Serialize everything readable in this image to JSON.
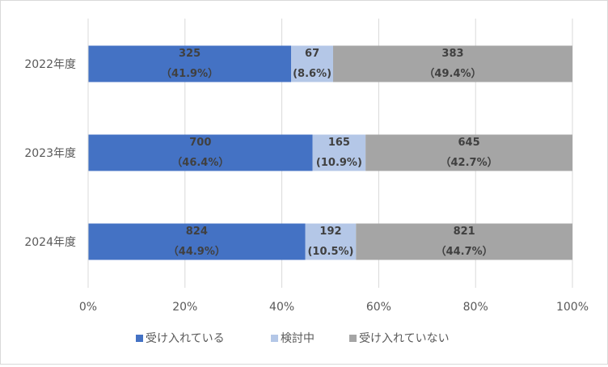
{
  "chart_data": {
    "type": "bar",
    "orientation": "horizontal",
    "stacked": "percent",
    "title": "",
    "xlabel": "",
    "ylabel": "",
    "xlim": [
      0,
      100
    ],
    "x_ticks": [
      "0%",
      "20%",
      "40%",
      "60%",
      "80%",
      "100%"
    ],
    "grid": "vertical",
    "legend_position": "bottom",
    "categories": [
      "2022年度",
      "2023年度",
      "2024年度"
    ],
    "series": [
      {
        "name": "受け入れている",
        "color": "#4472c4",
        "values": [
          325,
          700,
          824
        ],
        "percent": [
          41.9,
          46.4,
          44.9
        ],
        "labels": [
          [
            "325",
            "（41.9%）"
          ],
          [
            "700",
            "（46.4%）"
          ],
          [
            "824",
            "（44.9%）"
          ]
        ]
      },
      {
        "name": "検討中",
        "color": "#b4c7e7",
        "values": [
          67,
          165,
          192
        ],
        "percent": [
          8.6,
          10.9,
          10.5
        ],
        "labels": [
          [
            "67",
            "(8.6%)"
          ],
          [
            "165",
            "(10.9%)"
          ],
          [
            "192",
            "(10.5%)"
          ]
        ]
      },
      {
        "name": "受け入れていない",
        "color": "#a5a5a5",
        "values": [
          383,
          645,
          821
        ],
        "percent": [
          49.4,
          42.7,
          44.7
        ],
        "labels": [
          [
            "383",
            "（49.4%）"
          ],
          [
            "645",
            "（42.7%）"
          ],
          [
            "821",
            "（44.7%）"
          ]
        ]
      }
    ]
  }
}
